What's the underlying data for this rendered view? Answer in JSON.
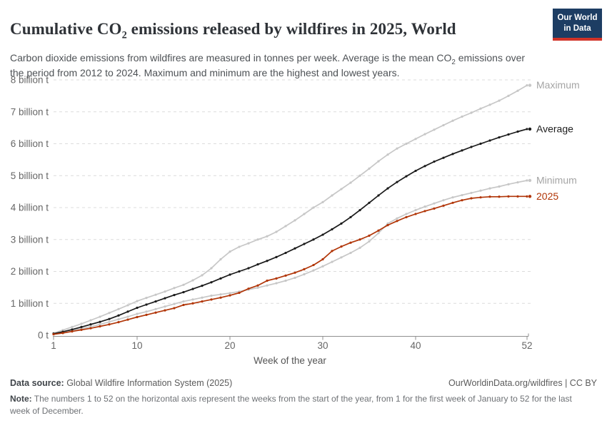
{
  "header": {
    "title": {
      "prefix": "Cumulative CO",
      "subscript": "2",
      "suffix": " emissions released by wildfires in 2025, World"
    },
    "subtitle": {
      "part1": "Carbon dioxide emissions from wildfires are measured in tonnes per week. Average is the mean CO",
      "subscript": "2",
      "part2": " emissions over the period from 2012 to 2024. Maximum and minimum are the highest and lowest years."
    },
    "logo": {
      "line1": "Our World",
      "line2": "in Data",
      "bg_color": "#1d3d63",
      "accent_color": "#d13328"
    }
  },
  "chart_data": {
    "type": "line",
    "title": "Cumulative CO₂ emissions released by wildfires in 2025, World",
    "xlabel": "Week of the year",
    "x_range": [
      1,
      52
    ],
    "x_ticks": [
      1,
      10,
      20,
      30,
      40,
      52
    ],
    "y_unit": "billion tonnes",
    "ylim": [
      0,
      8
    ],
    "grid": true,
    "legend_position": "line-end-labels",
    "y_ticks": [
      {
        "value": 0,
        "label": "0 t"
      },
      {
        "value": 1,
        "label": "1 billion t"
      },
      {
        "value": 2,
        "label": "2 billion t"
      },
      {
        "value": 3,
        "label": "3 billion t"
      },
      {
        "value": 4,
        "label": "4 billion t"
      },
      {
        "value": 5,
        "label": "5 billion t"
      },
      {
        "value": 6,
        "label": "6 billion t"
      },
      {
        "value": 7,
        "label": "7 billion t"
      },
      {
        "value": 8,
        "label": "8 billion t"
      }
    ],
    "series": [
      {
        "name": "Maximum",
        "color": "#c7c7c7",
        "label_color": "#a5a5a5",
        "values": [
          0.07,
          0.16,
          0.26,
          0.36,
          0.47,
          0.58,
          0.7,
          0.82,
          0.94,
          1.07,
          1.17,
          1.27,
          1.37,
          1.48,
          1.58,
          1.72,
          1.88,
          2.1,
          2.38,
          2.62,
          2.77,
          2.88,
          3.0,
          3.1,
          3.24,
          3.42,
          3.6,
          3.8,
          4.0,
          4.17,
          4.38,
          4.58,
          4.78,
          5.0,
          5.22,
          5.45,
          5.66,
          5.85,
          6.0,
          6.15,
          6.3,
          6.44,
          6.58,
          6.72,
          6.85,
          6.97,
          7.1,
          7.22,
          7.35,
          7.5,
          7.66,
          7.83
        ]
      },
      {
        "name": "Minimum",
        "color": "#c7c7c7",
        "label_color": "#a5a5a5",
        "values": [
          0.04,
          0.09,
          0.15,
          0.21,
          0.27,
          0.34,
          0.42,
          0.5,
          0.58,
          0.67,
          0.74,
          0.82,
          0.9,
          0.98,
          1.06,
          1.12,
          1.18,
          1.24,
          1.28,
          1.32,
          1.37,
          1.43,
          1.49,
          1.56,
          1.63,
          1.71,
          1.8,
          1.91,
          2.03,
          2.16,
          2.3,
          2.44,
          2.58,
          2.74,
          2.94,
          3.2,
          3.5,
          3.66,
          3.8,
          3.92,
          4.03,
          4.13,
          4.23,
          4.32,
          4.39,
          4.46,
          4.53,
          4.6,
          4.66,
          4.73,
          4.79,
          4.85
        ]
      },
      {
        "name": "Average",
        "color": "#1a1a1a",
        "label_color": "#1d1d1d",
        "values": [
          0.05,
          0.11,
          0.18,
          0.26,
          0.34,
          0.42,
          0.51,
          0.62,
          0.74,
          0.86,
          0.96,
          1.06,
          1.16,
          1.26,
          1.35,
          1.45,
          1.55,
          1.66,
          1.78,
          1.9,
          2.0,
          2.1,
          2.22,
          2.33,
          2.45,
          2.58,
          2.72,
          2.86,
          3.0,
          3.15,
          3.32,
          3.5,
          3.7,
          3.92,
          4.15,
          4.38,
          4.6,
          4.8,
          4.98,
          5.15,
          5.3,
          5.44,
          5.56,
          5.68,
          5.79,
          5.9,
          6.0,
          6.1,
          6.2,
          6.29,
          6.38,
          6.46
        ]
      },
      {
        "name": "2025",
        "color": "#b13507",
        "label_color": "#b13507",
        "values": [
          0.03,
          0.07,
          0.12,
          0.17,
          0.22,
          0.28,
          0.34,
          0.41,
          0.49,
          0.57,
          0.64,
          0.71,
          0.78,
          0.85,
          0.95,
          1.0,
          1.06,
          1.12,
          1.18,
          1.25,
          1.33,
          1.46,
          1.56,
          1.71,
          1.78,
          1.87,
          1.96,
          2.07,
          2.2,
          2.38,
          2.64,
          2.78,
          2.9,
          3.0,
          3.12,
          3.28,
          3.45,
          3.58,
          3.7,
          3.8,
          3.89,
          3.97,
          4.06,
          4.15,
          4.23,
          4.29,
          4.32,
          4.34,
          4.34,
          4.35,
          4.35,
          4.35
        ]
      }
    ],
    "axis_colors": {
      "grid": "#dcdcdc",
      "axis": "#8f8f8f",
      "tick_label": "#666666",
      "axis_title": "#555555"
    }
  },
  "footer": {
    "datasource_label": "Data source:",
    "datasource_value": " Global Wildfire Information System (2025)",
    "rights_link": "OurWorldinData.org/wildfires",
    "rights_sep": " | ",
    "rights_license": "CC BY",
    "note_label": "Note:",
    "note_text": " The numbers 1 to 52 on the horizontal axis represent the weeks from the start of the year, from 1 for the first week of January to 52 for the last week of December."
  }
}
